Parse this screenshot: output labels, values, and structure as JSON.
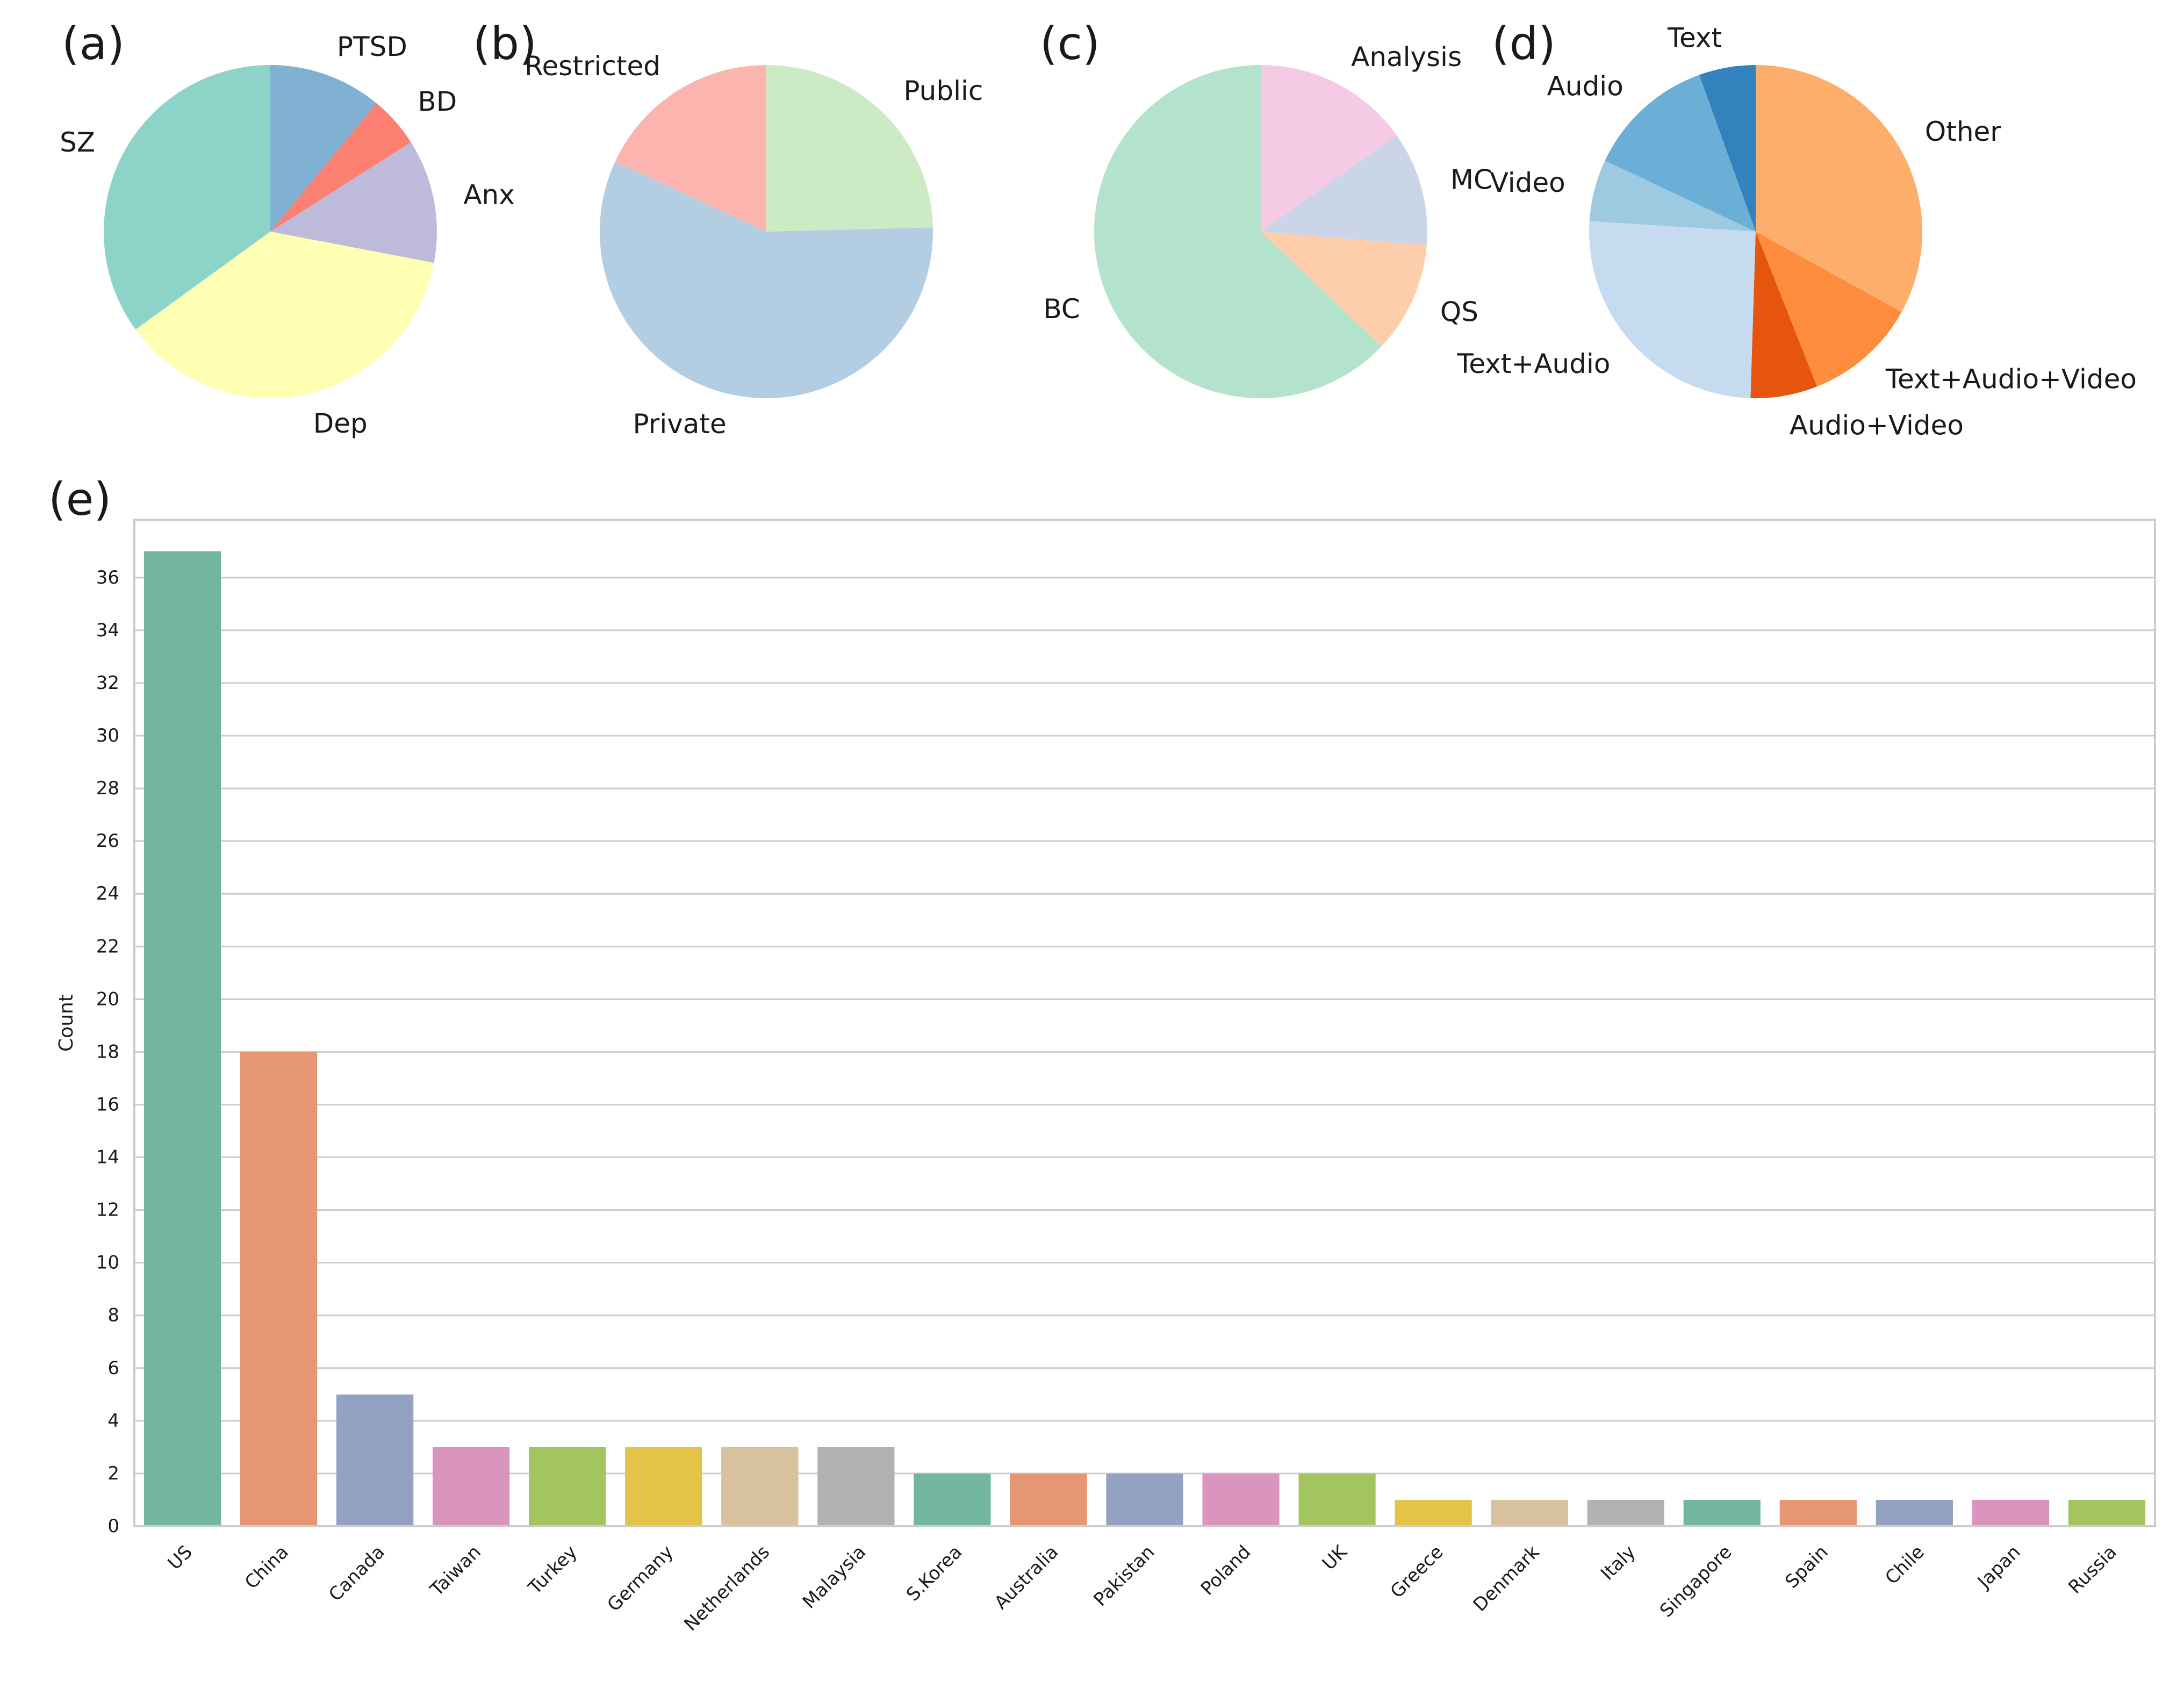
{
  "chart_data": [
    {
      "id": "a",
      "panel_label": "(a)",
      "type": "pie",
      "startangle_deg": 90,
      "direction": "clockwise",
      "slices": [
        {
          "label": "PTSD",
          "value": 11,
          "color": "#80b1d3"
        },
        {
          "label": "BD",
          "value": 5,
          "color": "#fb8072"
        },
        {
          "label": "Anx",
          "value": 12,
          "color": "#bebada"
        },
        {
          "label": "Dep",
          "value": 37,
          "color": "#ffffb3"
        },
        {
          "label": "SZ",
          "value": 35,
          "color": "#8dd3c7"
        }
      ]
    },
    {
      "id": "b",
      "panel_label": "(b)",
      "type": "pie",
      "startangle_deg": 90,
      "direction": "clockwise",
      "slices": [
        {
          "label": "Public",
          "value": 24.6,
          "color": "#ccebc5"
        },
        {
          "label": "Private",
          "value": 57.3,
          "color": "#b3cde3"
        },
        {
          "label": "Restricted",
          "value": 18.1,
          "color": "#fbb4ae"
        }
      ]
    },
    {
      "id": "c",
      "panel_label": "(c)",
      "type": "pie",
      "startangle_deg": 90,
      "direction": "clockwise",
      "slices": [
        {
          "label": "Analysis",
          "value": 15.2,
          "color": "#f4cae4"
        },
        {
          "label": "MC",
          "value": 11.1,
          "color": "#cbd5e8"
        },
        {
          "label": "QS",
          "value": 10.8,
          "color": "#fdcdac"
        },
        {
          "label": "BC",
          "value": 62.9,
          "color": "#b3e2cd"
        }
      ]
    },
    {
      "id": "d",
      "panel_label": "(d)",
      "type": "pie",
      "startangle_deg": 90,
      "direction": "clockwise",
      "slices": [
        {
          "label": "Other",
          "value": 33,
          "color": "#fdae6b"
        },
        {
          "label": "Text+Audio+Video",
          "value": 11,
          "color": "#fd8d3c"
        },
        {
          "label": "Audio+Video",
          "value": 6.5,
          "color": "#e6550d"
        },
        {
          "label": "Text+Audio",
          "value": 25.5,
          "color": "#c6dbef"
        },
        {
          "label": "Video",
          "value": 6,
          "color": "#9ecae1"
        },
        {
          "label": "Audio",
          "value": 12.5,
          "color": "#6baed6"
        },
        {
          "label": "Text",
          "value": 5.5,
          "color": "#3182bd"
        }
      ]
    },
    {
      "id": "e",
      "panel_label": "(e)",
      "type": "bar",
      "xlabel": "",
      "ylabel": "Count",
      "ylim": [
        0,
        38.2
      ],
      "yticks": [
        0,
        2,
        4,
        6,
        8,
        10,
        12,
        14,
        16,
        18,
        20,
        22,
        24,
        26,
        28,
        30,
        32,
        34,
        36
      ],
      "grid": "horizontal",
      "categories": [
        "US",
        "China",
        "Canada",
        "Taiwan",
        "Turkey",
        "Germany",
        "Netherlands",
        "Malaysia",
        "S.Korea",
        "Australia",
        "Pakistan",
        "Poland",
        "UK",
        "Greece",
        "Denmark",
        "Italy",
        "Singapore",
        "Spain",
        "Chile",
        "Japan",
        "Russia"
      ],
      "values": [
        37,
        18,
        5,
        3,
        3,
        3,
        3,
        3,
        2,
        2,
        2,
        2,
        2,
        1,
        1,
        1,
        1,
        1,
        1,
        1,
        1
      ],
      "colors": [
        "#72b6a0",
        "#e79674",
        "#93a2c3",
        "#da95bf",
        "#a3c560",
        "#e4c349",
        "#d8c19d",
        "#b2b2b2",
        "#72b6a0",
        "#e79674",
        "#93a2c3",
        "#da95bf",
        "#a3c560",
        "#e4c349",
        "#d8c19d",
        "#b2b2b2",
        "#72b6a0",
        "#e79674",
        "#93a2c3",
        "#da95bf",
        "#a3c560"
      ]
    }
  ]
}
